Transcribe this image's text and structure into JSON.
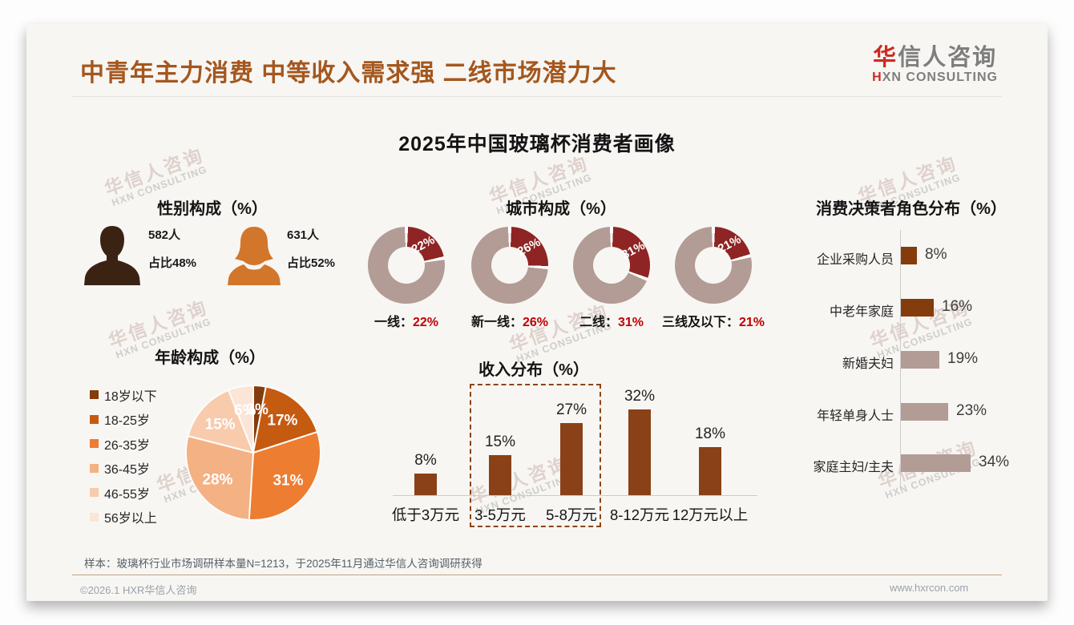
{
  "header": {
    "title": "中青年主力消费 中等收入需求强 二线市场潜力大",
    "logo": {
      "cn_accent": "华",
      "cn_rest": "信人咨询",
      "en_accent": "H",
      "en_rest": "XN CONSULTING"
    }
  },
  "main_title": "2025年中国玻璃杯消费者画像",
  "watermark": {
    "line1": "华信人咨询",
    "line2": "HXN CONSULTING"
  },
  "footer": {
    "note": "样本：玻璃杯行业市场调研样本量N=1213，于2025年11月通过华信人咨询调研获得",
    "copyright": "©2026.1 HXR华信人咨询",
    "website": "www.hxrcon.com"
  },
  "colors": {
    "title_brown": "#A4571E",
    "logo_red": "#CE2A21",
    "male_icon": "#3B2314",
    "female_icon": "#D2762B",
    "donut_slice": "#8E2423",
    "donut_remainder": "#B29C95",
    "percent_red": "#C00000",
    "income_bar": "#8A4117",
    "dashed_box": "#8B4513"
  },
  "chart_data": [
    {
      "id": "gender",
      "type": "table",
      "title": "性别构成（%）",
      "rows": [
        {
          "icon": "male-icon",
          "count": "582人",
          "share": "占比48%",
          "color": "#3B2314",
          "share_value": 48
        },
        {
          "icon": "female-icon",
          "count": "631人",
          "share": "占比52%",
          "color": "#D2762B",
          "share_value": 52
        }
      ]
    },
    {
      "id": "city",
      "type": "pie",
      "subtype": "donut",
      "title": "城市构成（%）",
      "categories": [
        "一线",
        "新一线",
        "二线",
        "三线及以下"
      ],
      "values": [
        22,
        26,
        31,
        21
      ],
      "label_colon": "：",
      "unit": "%",
      "slice_color": "#8E2423",
      "remainder_color": "#B29C95",
      "value_label_color": "#C00000",
      "legend_position": "below-each-donut"
    },
    {
      "id": "age",
      "type": "pie",
      "title": "年龄构成（%）",
      "categories": [
        "18岁以下",
        "18-25岁",
        "26-35岁",
        "36-45岁",
        "46-55岁",
        "56岁以上"
      ],
      "values": [
        3,
        17,
        31,
        28,
        15,
        6
      ],
      "colors": [
        "#843C0C",
        "#C55A11",
        "#ED7D31",
        "#F4B183",
        "#F8CBAD",
        "#FBE5D6"
      ],
      "unit": "%",
      "start_angle_deg": 0,
      "legend_position": "left"
    },
    {
      "id": "income",
      "type": "bar",
      "title": "收入分布（%）",
      "categories": [
        "低于3万元",
        "3-5万元",
        "5-8万元",
        "8-12万元",
        "12万元以上"
      ],
      "values": [
        8,
        15,
        27,
        32,
        18
      ],
      "unit": "%",
      "bar_color": "#8A4117",
      "ylim": [
        0,
        35
      ],
      "grid": false,
      "highlight": {
        "style": "dashed-box",
        "indices": [
          1,
          2
        ],
        "color": "#8B4513"
      }
    },
    {
      "id": "decision",
      "type": "bar",
      "orientation": "horizontal",
      "title": "消费决策者角色分布（%）",
      "categories": [
        "企业采购人员",
        "中老年家庭",
        "新婚夫妇",
        "年轻单身人士",
        "家庭主妇/主夫"
      ],
      "values": [
        8,
        16,
        19,
        23,
        34
      ],
      "unit": "%",
      "colors": [
        "#843C0C",
        "#843C0C",
        "#B29C95",
        "#B29C95",
        "#B29C95"
      ],
      "xlim": [
        0,
        40
      ],
      "grid": false
    }
  ]
}
